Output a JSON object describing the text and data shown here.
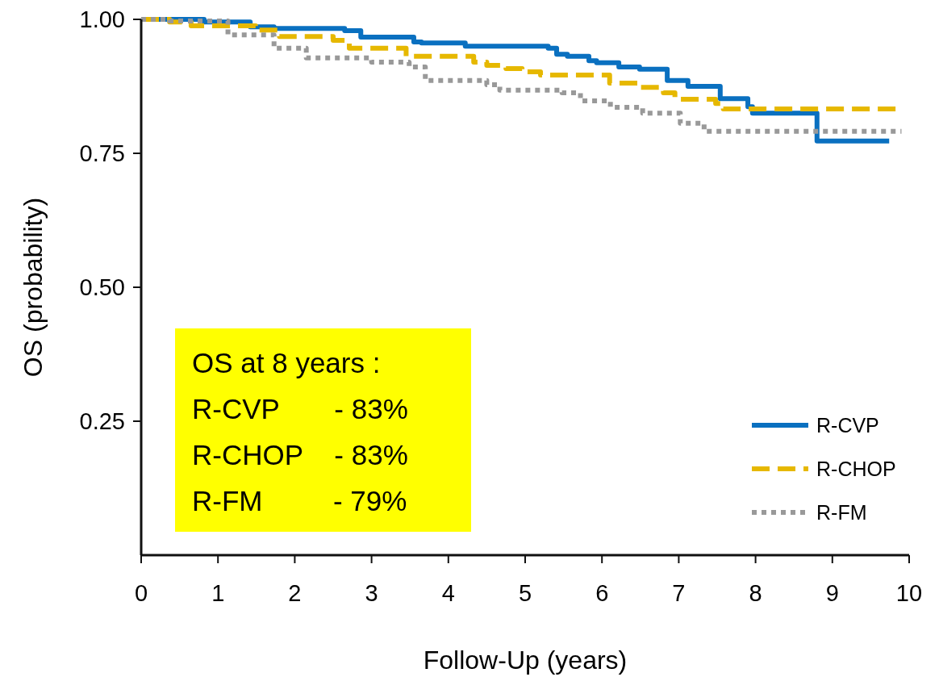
{
  "chart_data": {
    "type": "step",
    "xlabel": "Follow-Up (years)",
    "ylabel": "OS (probability)",
    "xlim": [
      0,
      10
    ],
    "xticks": [
      0,
      1,
      2,
      3,
      4,
      5,
      6,
      7,
      8,
      9,
      10
    ],
    "ylim": [
      0,
      1
    ],
    "yticks": [
      {
        "value": 0.25,
        "label": "0.25"
      },
      {
        "value": 0.5,
        "label": "0.50"
      },
      {
        "value": 0.75,
        "label": "0.75"
      },
      {
        "value": 1,
        "label": "1.00"
      }
    ],
    "grid": false,
    "legend": "bottom right",
    "annotations": [
      "OS at 8 years :",
      "R-CVP       - 83%",
      "R-CHOP    - 83%",
      "R-FM         - 79%"
    ],
    "series": [
      {
        "name": "R-CVP",
        "color": "#0a70c0",
        "line_style": "solid",
        "x": [
          0,
          0.82,
          1.42,
          1.73,
          2.65,
          2.86,
          3.55,
          3.65,
          4.22,
          5.3,
          5.41,
          5.55,
          5.83,
          5.93,
          6.22,
          6.49,
          6.85,
          7.12,
          7.54,
          7.9,
          7.96,
          8.8,
          9.74
        ],
        "values": [
          1,
          0.995,
          0.986,
          0.983,
          0.979,
          0.967,
          0.958,
          0.956,
          0.95,
          0.946,
          0.935,
          0.931,
          0.923,
          0.919,
          0.911,
          0.907,
          0.886,
          0.875,
          0.852,
          0.837,
          0.825,
          0.773,
          0.773
        ]
      },
      {
        "name": "R-CHOP",
        "color": "#e6b800",
        "line_style": "dashed",
        "x": [
          0,
          0.37,
          0.65,
          1.49,
          1.8,
          2.5,
          2.71,
          3.45,
          4.33,
          4.5,
          4.75,
          4.96,
          5.2,
          6.1,
          6.49,
          6.8,
          6.95,
          7.48,
          7.58,
          9.87
        ],
        "values": [
          1,
          0.995,
          0.988,
          0.98,
          0.968,
          0.961,
          0.946,
          0.931,
          0.92,
          0.914,
          0.908,
          0.902,
          0.896,
          0.881,
          0.873,
          0.863,
          0.851,
          0.843,
          0.833,
          0.833
        ]
      },
      {
        "name": "R-FM",
        "color": "#999999",
        "line_style": "dotted",
        "x": [
          0,
          0.37,
          1.13,
          1.73,
          2.15,
          3.0,
          3.49,
          3.7,
          4.5,
          4.67,
          5.48,
          5.72,
          6.11,
          6.53,
          7.02,
          7.33,
          9.9
        ],
        "values": [
          1,
          0.997,
          0.971,
          0.946,
          0.928,
          0.92,
          0.911,
          0.886,
          0.878,
          0.868,
          0.863,
          0.848,
          0.836,
          0.825,
          0.806,
          0.791,
          0.791
        ]
      }
    ]
  }
}
